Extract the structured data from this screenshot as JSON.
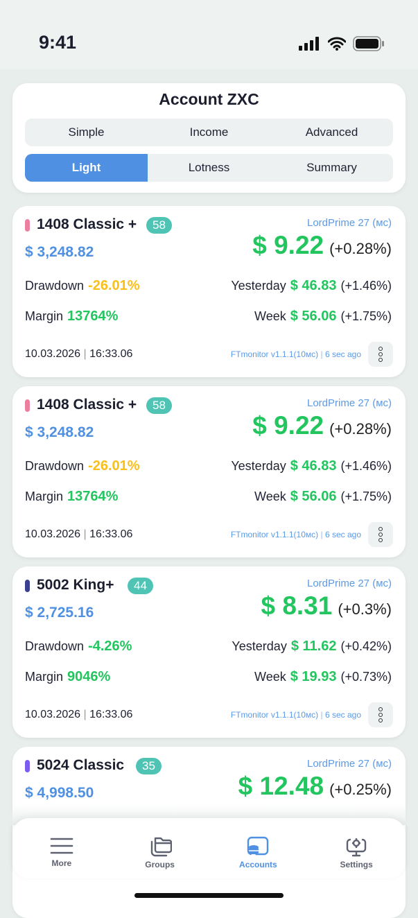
{
  "status_bar": {
    "time": "9:41"
  },
  "header": {
    "title": "Account ZXC",
    "tabs_row1": [
      {
        "label": "Simple"
      },
      {
        "label": "Income"
      },
      {
        "label": "Advanced"
      }
    ],
    "tabs_row2": [
      {
        "label": "Light",
        "active": true
      },
      {
        "label": "Lotness"
      },
      {
        "label": "Summary"
      }
    ]
  },
  "accounts": [
    {
      "name": "1408 Classic +",
      "badge": "58",
      "tag_color": "#ec7fa0",
      "balance": "$ 3,248.82",
      "server": "LordPrime 27 (мс)",
      "profit": "$ 9.22",
      "profit_pct": "(+0.28%)",
      "drawdown_label": "Drawdown",
      "drawdown": "-26.01%",
      "drawdown_color": "#fbbf1a",
      "margin_label": "Margin",
      "margin": "13764%",
      "yesterday_label": "Yesterday",
      "yesterday": "$ 46.83",
      "yesterday_pct": "(+1.46%)",
      "week_label": "Week",
      "week": "$ 56.06",
      "week_pct": "(+1.75%)",
      "date": "10.03.2026",
      "time": "16:33.06",
      "monitor": "FTmonitor v1.1.1(10мс)",
      "ago": "6 sec ago"
    },
    {
      "name": "1408 Classic +",
      "badge": "58",
      "tag_color": "#ec7fa0",
      "balance": "$ 3,248.82",
      "server": "LordPrime 27 (мс)",
      "profit": "$ 9.22",
      "profit_pct": "(+0.28%)",
      "drawdown_label": "Drawdown",
      "drawdown": "-26.01%",
      "drawdown_color": "#fbbf1a",
      "margin_label": "Margin",
      "margin": "13764%",
      "yesterday_label": "Yesterday",
      "yesterday": "$ 46.83",
      "yesterday_pct": "(+1.46%)",
      "week_label": "Week",
      "week": "$ 56.06",
      "week_pct": "(+1.75%)",
      "date": "10.03.2026",
      "time": "16:33.06",
      "monitor": "FTmonitor v1.1.1(10мс)",
      "ago": "6 sec ago"
    },
    {
      "name": "5002 King+",
      "badge": "44",
      "tag_color": "#3b3f8f",
      "balance": "$ 2,725.16",
      "server": "LordPrime 27 (мс)",
      "profit": "$ 8.31",
      "profit_pct": "(+0.3%)",
      "drawdown_label": "Drawdown",
      "drawdown": "-4.26%",
      "drawdown_color": "#22c55e",
      "margin_label": "Margin",
      "margin": "9046%",
      "yesterday_label": "Yesterday",
      "yesterday": "$ 11.62",
      "yesterday_pct": "(+0.42%)",
      "week_label": "Week",
      "week": "$ 19.93",
      "week_pct": "(+0.73%)",
      "date": "10.03.2026",
      "time": "16:33.06",
      "monitor": "FTmonitor v1.1.1(10мс)",
      "ago": "6 sec ago"
    },
    {
      "name": "5024 Classic",
      "badge": "35",
      "tag_color": "#7b5cf0",
      "balance": "$ 4,998.50",
      "server": "LordPrime 27 (мс)",
      "profit": "$ 12.48",
      "profit_pct": "(+0.25%)"
    }
  ],
  "nav": [
    {
      "label": "More",
      "icon": "menu-icon"
    },
    {
      "label": "Groups",
      "icon": "folder-icon"
    },
    {
      "label": "Accounts",
      "icon": "accounts-icon",
      "active": true
    },
    {
      "label": "Settings",
      "icon": "settings-icon"
    }
  ]
}
